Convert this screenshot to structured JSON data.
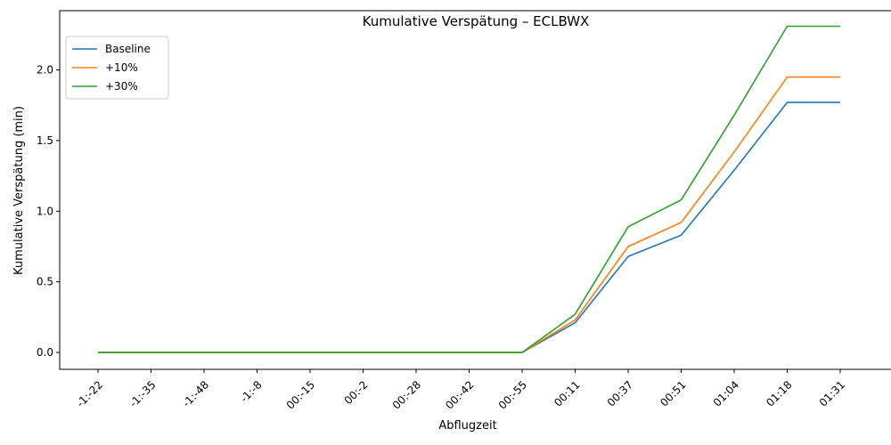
{
  "chart_data": {
    "type": "line",
    "title": "Kumulative Verspätung – ECLBWX",
    "xlabel": "Abflugzeit",
    "ylabel": "Kumulative Verspätung (min)",
    "categories": [
      "-1:-22",
      "-1:-35",
      "-1:-48",
      "-1:-8",
      "00:-15",
      "00:-2",
      "00:-28",
      "00:-42",
      "00:-55",
      "00:11",
      "00:37",
      "00:51",
      "01:04",
      "01:18",
      "01:31"
    ],
    "ylim": [
      -0.12,
      2.42
    ],
    "yticks": [
      "0.0",
      "0.5",
      "1.0",
      "1.5",
      "2.0"
    ],
    "ytick_values": [
      0,
      0.5,
      1.0,
      1.5,
      2.0
    ],
    "grid": false,
    "legend_position": "top-left",
    "series": [
      {
        "name": "Baseline",
        "color": "#1f77b4",
        "values": [
          0,
          0,
          0,
          0,
          0,
          0,
          0,
          0,
          0,
          0.21,
          0.68,
          0.83,
          1.29,
          1.77,
          1.77
        ]
      },
      {
        "name": "+10%",
        "color": "#ff7f0e",
        "values": [
          0,
          0,
          0,
          0,
          0,
          0,
          0,
          0,
          0,
          0.23,
          0.75,
          0.92,
          1.42,
          1.95,
          1.95
        ]
      },
      {
        "name": "+30%",
        "color": "#2ca02c",
        "values": [
          0,
          0,
          0,
          0,
          0,
          0,
          0,
          0,
          0,
          0.27,
          0.89,
          1.08,
          1.68,
          2.31,
          2.31
        ]
      }
    ]
  }
}
